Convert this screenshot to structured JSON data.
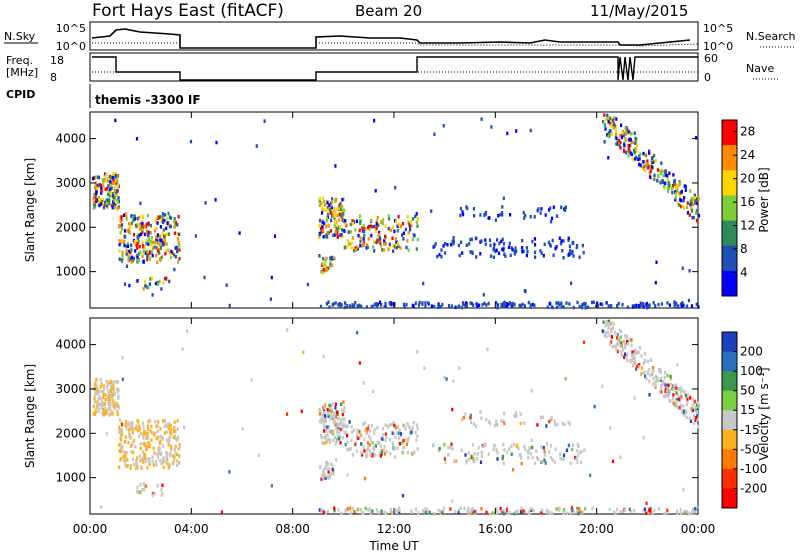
{
  "title": {
    "station": "Fort Hays East (fitACF)",
    "beam": "Beam 20",
    "date": "11/May/2015"
  },
  "header_panels": {
    "nsky_label": "N.Sky",
    "nsky_ticks": [
      "10^5",
      "10^0"
    ],
    "nsearch_label": "N.Search",
    "nsearch_ticks": [
      "10^5",
      "10^0"
    ],
    "freq_label_1": "Freq.",
    "freq_label_2": "[MHz]",
    "freq_ticks": [
      "18",
      "8"
    ],
    "nave_label": "Nave",
    "nave_ticks": [
      "60",
      "0"
    ],
    "cpid_label": "CPID",
    "cpid_text": "themis -3300 IF"
  },
  "chart_data": [
    {
      "type": "heatmap",
      "name": "power",
      "xlabel": "Time UT",
      "ylabel": "Slant Range [km]",
      "x_ticks": [
        "00:00",
        "04:00",
        "08:00",
        "12:00",
        "16:00",
        "20:00",
        "00:00"
      ],
      "xlim_hours": [
        0,
        24
      ],
      "y_ticks": [
        1000,
        2000,
        3000,
        4000
      ],
      "ylim_km": [
        180,
        4600
      ],
      "colorbar_label": "Power [dB]",
      "colorbar_ticks": [
        4,
        8,
        12,
        16,
        20,
        24,
        28
      ],
      "colorbar_range": [
        0,
        30
      ],
      "colorbar_colors": [
        "#0000ff",
        "#1d4fb4",
        "#2e8b57",
        "#7ccd3a",
        "#ffd400",
        "#ff8c00",
        "#ff0000"
      ]
    },
    {
      "type": "heatmap",
      "name": "velocity",
      "xlabel": "Time UT",
      "ylabel": "Slant Range [km]",
      "x_ticks": [
        "00:00",
        "04:00",
        "08:00",
        "12:00",
        "16:00",
        "20:00",
        "00:00"
      ],
      "xlim_hours": [
        0,
        24
      ],
      "y_ticks": [
        1000,
        2000,
        3000,
        4000
      ],
      "ylim_km": [
        180,
        4600
      ],
      "colorbar_label": "Velocity [m s⁻¹]",
      "colorbar_ticks": [
        "200",
        "100",
        "50",
        "15",
        "-15",
        "-50",
        "-100",
        "-200"
      ],
      "colorbar_colors": [
        "#1e3fbf",
        "#2a6fbf",
        "#3a9a4a",
        "#7ad040",
        "#c8c8c8",
        "#ffb020",
        "#ff7a00",
        "#ff3000",
        "#ff0000"
      ]
    }
  ]
}
